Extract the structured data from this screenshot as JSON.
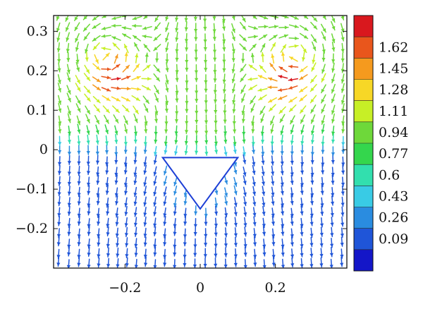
{
  "chart_data": {
    "type": "vector-field",
    "title": "",
    "xlabel": "",
    "ylabel": "",
    "xlim": [
      -0.39,
      0.39
    ],
    "ylim": [
      -0.3,
      0.34
    ],
    "x_ticks": [
      {
        "value": -0.2,
        "label": "−0.2"
      },
      {
        "value": 0,
        "label": "0"
      },
      {
        "value": 0.2,
        "label": "0.2"
      }
    ],
    "y_ticks": [
      {
        "value": 0.3,
        "label": "0.3"
      },
      {
        "value": 0.2,
        "label": "0.2"
      },
      {
        "value": 0.1,
        "label": "0.1"
      },
      {
        "value": 0,
        "label": "0"
      },
      {
        "value": -0.1,
        "label": "−0.1"
      },
      {
        "value": -0.2,
        "label": "−0.2"
      }
    ],
    "obstacle": {
      "shape": "inverted-triangle",
      "vertices": [
        [
          -0.1,
          -0.02
        ],
        [
          0.1,
          -0.02
        ],
        [
          0,
          -0.15
        ]
      ]
    },
    "colorbar": {
      "colormap": "jet",
      "min": 0,
      "max": 1.79,
      "tick_labels": [
        "1.62",
        "1.45",
        "1.28",
        "1.11",
        "0.94",
        "0.77",
        "0.6",
        "0.43",
        "0.26",
        "0.09"
      ],
      "colors": [
        "#d9181e",
        "#e9561c",
        "#f59a1e",
        "#f7d726",
        "#c7ef26",
        "#6ed83a",
        "#34d64d",
        "#32dfae",
        "#39cbe5",
        "#2a8ce0",
        "#1f55d8",
        "#1416c8"
      ]
    }
  }
}
